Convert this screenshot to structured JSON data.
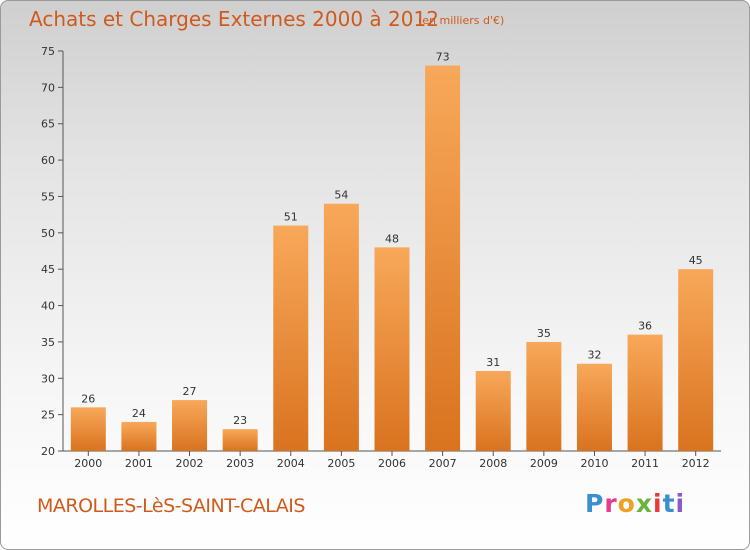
{
  "header": {
    "title": "Achats et Charges Externes 2000 à 2012",
    "subtitle": "(en milliers d'€)"
  },
  "footer": {
    "town": "MAROLLES-LèS-SAINT-CALAIS",
    "logo_text": "Proxiti",
    "logo_colors": [
      "#3a8fd0",
      "#e83a8c",
      "#f0a020",
      "#6ab43c",
      "#e83a3a",
      "#3a8fd0",
      "#8a5ac8"
    ]
  },
  "colors": {
    "bar_light": "#f8a85a",
    "bar_dark": "#d9731f",
    "title": "#d05a1c"
  },
  "chart_data": {
    "type": "bar",
    "title": "Achats et Charges Externes 2000 à 2012",
    "subtitle": "(en milliers d'€)",
    "categories": [
      "2000",
      "2001",
      "2002",
      "2003",
      "2004",
      "2005",
      "2006",
      "2007",
      "2008",
      "2009",
      "2010",
      "2011",
      "2012"
    ],
    "values": [
      26,
      24,
      27,
      23,
      51,
      54,
      48,
      73,
      31,
      35,
      32,
      36,
      45
    ],
    "ylim": [
      20,
      75
    ],
    "yticks": [
      20,
      25,
      30,
      35,
      40,
      45,
      50,
      55,
      60,
      65,
      70,
      75
    ],
    "grid": false,
    "legend": "none"
  }
}
